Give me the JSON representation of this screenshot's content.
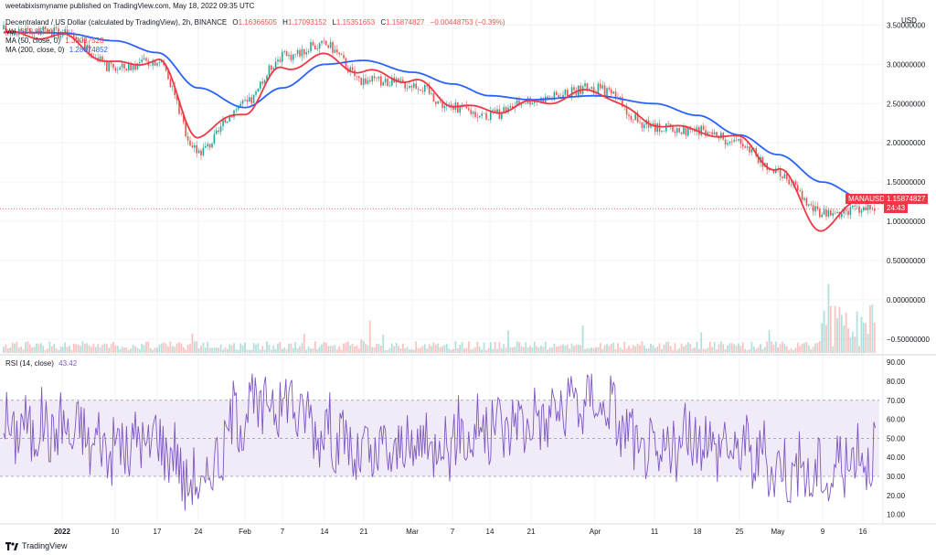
{
  "header": {
    "author_line": "weetabixismyname published on TradingView.com, May 18, 2022 09:35 UTC",
    "symbol_title": "Decentraland / US Dollar (calculated by TradingView), 2h, BINANCE",
    "ohlc": [
      {
        "label": "O",
        "value": "1.16366505"
      },
      {
        "label": "H",
        "value": "1.17093152"
      },
      {
        "label": "L",
        "value": "1.15351653"
      },
      {
        "label": "C",
        "value": "1.15874827"
      }
    ],
    "change": "−0.00448753 (−0.39%)",
    "vol_label": "Vol",
    "vol_value": "315.855K",
    "ma50_label": "MA (50, close, 0)",
    "ma50_value": "1.30037528",
    "ma200_label": "MA (200, close, 0)",
    "ma200_value": "1.28674852",
    "rsi_label": "RSI (14, close)",
    "rsi_value": "43.42"
  },
  "price_axis": {
    "currency": "USD",
    "ticks": [
      "3.50000000",
      "3.00000000",
      "2.50000000",
      "2.00000000",
      "1.50000000",
      "1.00000000",
      "0.50000000",
      "0.00000000",
      "−0.50000000"
    ],
    "last_price_tag": {
      "symbol": "MANAUSD",
      "price": "1.15874827",
      "countdown": "24:43"
    }
  },
  "rsi_axis": {
    "ticks": [
      "90.00",
      "80.00",
      "70.00",
      "60.00",
      "50.00",
      "40.00",
      "30.00",
      "20.00",
      "10.00"
    ],
    "band_upper": 70,
    "band_lower": 30
  },
  "time_axis": {
    "labels": [
      "2022",
      "10",
      "17",
      "24",
      "Feb",
      "7",
      "14",
      "21",
      "Mar",
      "7",
      "14",
      "21",
      "Apr",
      "11",
      "18",
      "25",
      "May",
      "9",
      "16"
    ]
  },
  "brand": {
    "name": "TradingView"
  },
  "colors": {
    "up": "#26a69a",
    "down": "#ef5350",
    "ma50": "#f23645",
    "ma200": "#2962ff",
    "rsi": "#7e57c2",
    "rsi_band": "#ede7f6"
  },
  "chart_data": [
    {
      "type": "line",
      "name": "price",
      "x": [
        "2022",
        "10",
        "17",
        "24",
        "Feb",
        "7",
        "14",
        "21",
        "Mar",
        "7",
        "14",
        "21",
        "Apr",
        "11",
        "18",
        "25",
        "May",
        "9",
        "16"
      ],
      "close_approx": [
        3.4,
        2.95,
        3.05,
        1.9,
        2.5,
        3.1,
        3.25,
        2.8,
        2.75,
        2.45,
        2.35,
        2.55,
        2.7,
        2.2,
        2.15,
        2.0,
        1.6,
        1.1,
        1.16
      ],
      "ma50_approx": [
        3.35,
        3.0,
        3.05,
        2.1,
        2.4,
        2.95,
        3.1,
        2.9,
        2.8,
        2.5,
        2.4,
        2.5,
        2.65,
        2.25,
        2.15,
        2.05,
        1.65,
        0.9,
        1.3
      ],
      "ma200_approx": [
        3.4,
        3.3,
        3.15,
        2.7,
        2.45,
        2.7,
        3.0,
        3.05,
        2.9,
        2.75,
        2.6,
        2.55,
        2.6,
        2.5,
        2.35,
        2.1,
        1.85,
        1.5,
        1.29
      ],
      "ylim": [
        -0.7,
        3.75
      ]
    },
    {
      "type": "line",
      "name": "RSI",
      "x": [
        "2022",
        "10",
        "17",
        "24",
        "Feb",
        "7",
        "14",
        "21",
        "Mar",
        "7",
        "14",
        "21",
        "Apr",
        "11",
        "18",
        "25",
        "May",
        "9",
        "16"
      ],
      "values_approx": [
        55,
        45,
        50,
        25,
        65,
        70,
        55,
        40,
        45,
        50,
        55,
        60,
        70,
        40,
        50,
        45,
        35,
        30,
        43
      ],
      "ylim": [
        5,
        92
      ]
    }
  ]
}
